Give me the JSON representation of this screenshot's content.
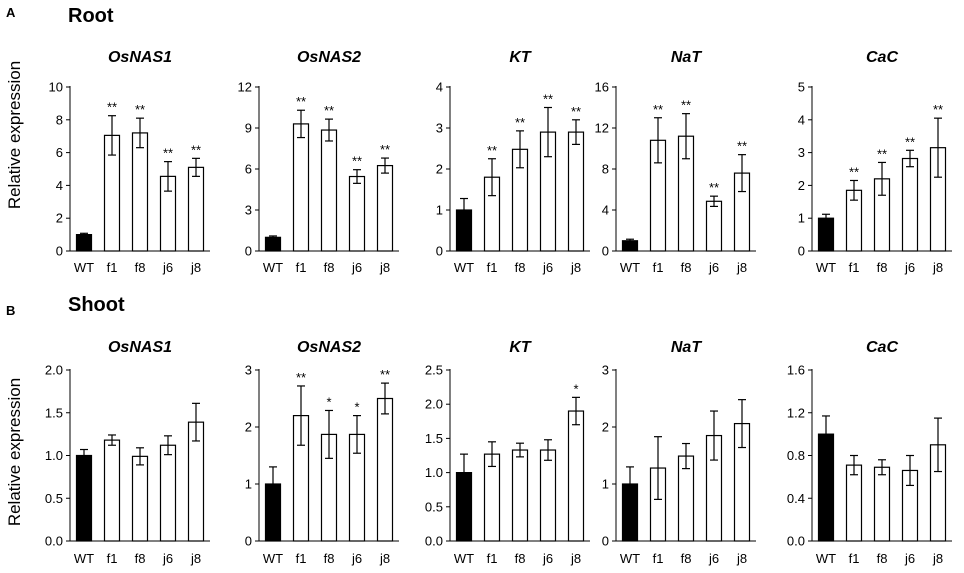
{
  "colors": {
    "filled": "#000000",
    "open": "#ffffff",
    "stroke": "#000000"
  },
  "sections": [
    {
      "letter": "A",
      "title": "Root",
      "ylabel": "Relative expression",
      "charts": [
        {
          "type": "bar",
          "title": "OsNAS1",
          "categories": [
            "WT",
            "f1",
            "f8",
            "j6",
            "j8"
          ],
          "values": [
            1.0,
            7.05,
            7.2,
            4.55,
            5.1
          ],
          "errors": [
            0.08,
            1.2,
            0.9,
            0.9,
            0.55
          ],
          "sig": [
            "",
            "**",
            "**",
            "**",
            "**"
          ],
          "ylim": [
            0,
            10
          ],
          "yticks": [
            "0",
            "2",
            "4",
            "6",
            "8",
            "10"
          ],
          "filled": [
            true,
            false,
            false,
            false,
            false
          ]
        },
        {
          "type": "bar",
          "title": "OsNAS2",
          "categories": [
            "WT",
            "f1",
            "f8",
            "j6",
            "j8"
          ],
          "values": [
            1.0,
            9.3,
            8.85,
            5.45,
            6.25
          ],
          "errors": [
            0.1,
            1.0,
            0.8,
            0.5,
            0.55
          ],
          "sig": [
            "",
            "**",
            "**",
            "**",
            "**"
          ],
          "ylim": [
            0,
            12
          ],
          "yticks": [
            "0",
            "3",
            "6",
            "9",
            "12"
          ],
          "filled": [
            true,
            false,
            false,
            false,
            false
          ]
        },
        {
          "type": "bar",
          "title": "KT",
          "categories": [
            "WT",
            "f1",
            "f8",
            "j6",
            "j8"
          ],
          "values": [
            1.0,
            1.8,
            2.48,
            2.9,
            2.9
          ],
          "errors": [
            0.28,
            0.45,
            0.45,
            0.6,
            0.3
          ],
          "sig": [
            "",
            "**",
            "**",
            "**",
            "**"
          ],
          "ylim": [
            0,
            4
          ],
          "yticks": [
            "0",
            "1",
            "2",
            "3",
            "4"
          ],
          "filled": [
            true,
            false,
            false,
            false,
            false
          ]
        },
        {
          "type": "bar",
          "title": "NaT",
          "categories": [
            "WT",
            "f1",
            "f8",
            "j6",
            "j8"
          ],
          "values": [
            1.0,
            10.8,
            11.2,
            4.85,
            7.6
          ],
          "errors": [
            0.15,
            2.2,
            2.2,
            0.5,
            1.8
          ],
          "sig": [
            "",
            "**",
            "**",
            "**",
            "**"
          ],
          "ylim": [
            0,
            16
          ],
          "yticks": [
            "0",
            "4",
            "8",
            "12",
            "16"
          ],
          "filled": [
            true,
            false,
            false,
            false,
            false
          ]
        },
        {
          "type": "bar",
          "title": "CaC",
          "categories": [
            "WT",
            "f1",
            "f8",
            "j6",
            "j8"
          ],
          "values": [
            1.0,
            1.85,
            2.2,
            2.82,
            3.15
          ],
          "errors": [
            0.12,
            0.3,
            0.5,
            0.25,
            0.9
          ],
          "sig": [
            "",
            "**",
            "**",
            "**",
            "**"
          ],
          "ylim": [
            0,
            5
          ],
          "yticks": [
            "0",
            "1",
            "2",
            "3",
            "4",
            "5"
          ],
          "filled": [
            true,
            false,
            false,
            false,
            false
          ]
        }
      ]
    },
    {
      "letter": "B",
      "title": "Shoot",
      "ylabel": "Relative expression",
      "charts": [
        {
          "type": "bar",
          "title": "OsNAS1",
          "categories": [
            "WT",
            "f1",
            "f8",
            "j6",
            "j8"
          ],
          "values": [
            1.0,
            1.18,
            0.99,
            1.12,
            1.39
          ],
          "errors": [
            0.07,
            0.06,
            0.1,
            0.11,
            0.22
          ],
          "sig": [
            "",
            "",
            "",
            "",
            ""
          ],
          "ylim": [
            0,
            2
          ],
          "yticks": [
            "0.0",
            "0.5",
            "1.0",
            "1.5",
            "2.0"
          ],
          "filled": [
            true,
            false,
            false,
            false,
            false
          ]
        },
        {
          "type": "bar",
          "title": "OsNAS2",
          "categories": [
            "WT",
            "f1",
            "f8",
            "j6",
            "j8"
          ],
          "values": [
            1.0,
            2.2,
            1.87,
            1.87,
            2.5
          ],
          "errors": [
            0.3,
            0.52,
            0.42,
            0.33,
            0.27
          ],
          "sig": [
            "",
            "**",
            "*",
            "*",
            "**"
          ],
          "ylim": [
            0,
            3
          ],
          "yticks": [
            "0",
            "1",
            "2",
            "3"
          ],
          "filled": [
            true,
            false,
            false,
            false,
            false
          ]
        },
        {
          "type": "bar",
          "title": "KT",
          "categories": [
            "WT",
            "f1",
            "f8",
            "j6",
            "j8"
          ],
          "values": [
            1.0,
            1.27,
            1.33,
            1.33,
            1.9
          ],
          "errors": [
            0.27,
            0.18,
            0.1,
            0.15,
            0.2
          ],
          "sig": [
            "",
            "",
            "",
            "",
            "*"
          ],
          "ylim": [
            0,
            2.5
          ],
          "yticks": [
            "0.0",
            "0.5",
            "1.0",
            "1.5",
            "2.0",
            "2.5"
          ],
          "filled": [
            true,
            false,
            false,
            false,
            false
          ]
        },
        {
          "type": "bar",
          "title": "NaT",
          "categories": [
            "WT",
            "f1",
            "f8",
            "j6",
            "j8"
          ],
          "values": [
            1.0,
            1.28,
            1.49,
            1.85,
            2.06
          ],
          "errors": [
            0.3,
            0.55,
            0.22,
            0.43,
            0.42
          ],
          "sig": [
            "",
            "",
            "",
            "",
            ""
          ],
          "ylim": [
            0,
            3
          ],
          "yticks": [
            "0",
            "1",
            "2",
            "3"
          ],
          "filled": [
            true,
            false,
            false,
            false,
            false
          ]
        },
        {
          "type": "bar",
          "title": "CaC",
          "categories": [
            "WT",
            "f1",
            "f8",
            "j6",
            "j8"
          ],
          "values": [
            1.0,
            0.71,
            0.69,
            0.66,
            0.9
          ],
          "errors": [
            0.17,
            0.09,
            0.07,
            0.14,
            0.25
          ],
          "sig": [
            "",
            "",
            "",
            "",
            ""
          ],
          "ylim": [
            0,
            1.6
          ],
          "yticks": [
            "0.0",
            "0.4",
            "0.8",
            "1.2",
            "1.6"
          ],
          "filled": [
            true,
            false,
            false,
            false,
            false
          ]
        }
      ]
    }
  ]
}
